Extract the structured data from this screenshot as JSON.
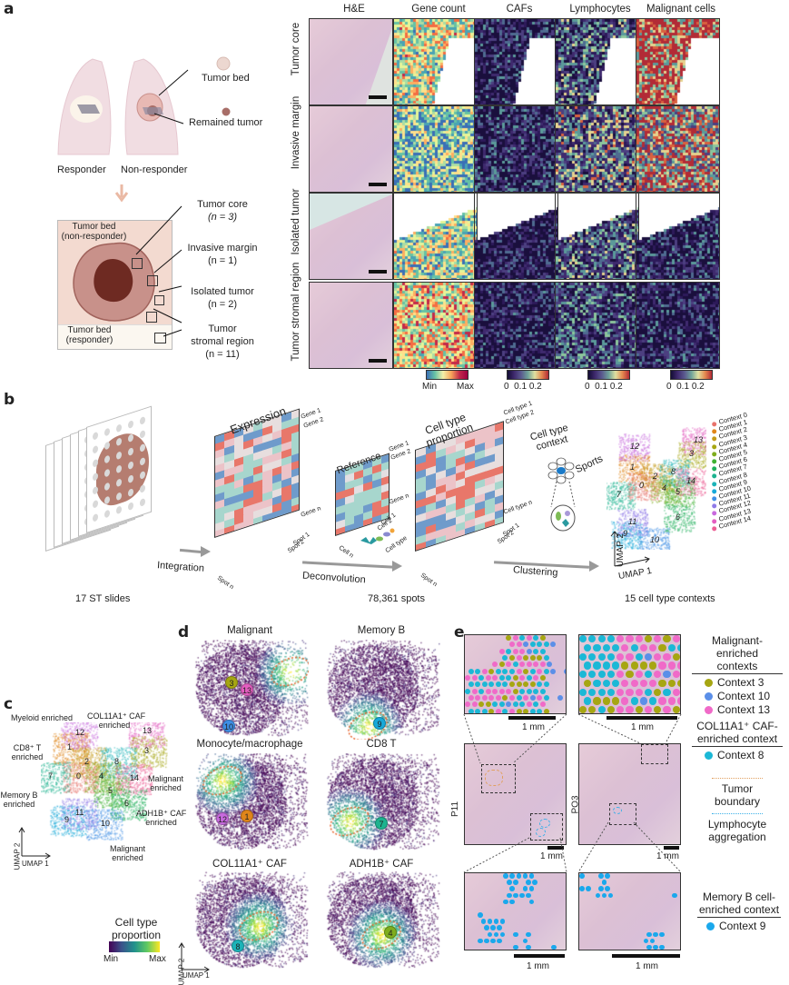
{
  "panel_labels": {
    "a": "a",
    "b": "b",
    "c": "c",
    "d": "d",
    "e": "e"
  },
  "panel_a": {
    "schematic": {
      "lung_labels": [
        "Responder",
        "Non-responder"
      ],
      "callouts": [
        "Tumor bed",
        "Remained tumor"
      ],
      "box_labels": {
        "nonresponder": "Tumor bed\n(non-responder)",
        "responder": "Tumor bed\n(responder)"
      },
      "box_nonresponder_line1": "Tumor bed",
      "box_nonresponder_line2": "(non-responder)",
      "box_responder_line1": "Tumor bed",
      "box_responder_line2": "(responder)",
      "regions": [
        {
          "name": "Tumor core",
          "n": "(n = 3)"
        },
        {
          "name": "Invasive margin",
          "n": "(n = 1)"
        },
        {
          "name": "Isolated tumor",
          "n": "(n = 2)"
        },
        {
          "name": "Tumor\nstromal region",
          "line1": "Tumor",
          "line2": "stromal region",
          "n": "(n = 11)"
        }
      ]
    },
    "grid": {
      "columns": [
        "H&E",
        "Gene count",
        "CAFs",
        "Lymphocytes",
        "Malignant cells"
      ],
      "rows": [
        "Tumor core",
        "Invasive margin",
        "Isolated tumor",
        "Tumor stromal region"
      ],
      "colorbars": [
        {
          "column": "Gene count",
          "ticks": [
            "Min",
            "Max"
          ],
          "palette": "spectral"
        },
        {
          "column": "CAFs",
          "ticks": [
            "0",
            "0.1",
            "0.2"
          ],
          "palette": "magma-like"
        },
        {
          "column": "Lymphocytes",
          "ticks": [
            "0",
            "0.1",
            "0.2"
          ],
          "palette": "magma-like"
        },
        {
          "column": "Malignant cells",
          "ticks": [
            "0",
            "0.1",
            "0.2"
          ],
          "palette": "magma-like"
        }
      ]
    }
  },
  "panel_b": {
    "steps": [
      {
        "caption": "17 ST slides"
      },
      {
        "arrow": "Integration"
      },
      {
        "matrix": "Expression",
        "row_labels": [
          "Gene 1",
          "Gene 2",
          "Gene n"
        ],
        "col_labels": [
          "Spot 1",
          "Spot 2",
          "Spot n"
        ]
      },
      {
        "matrix": "Reference",
        "row_labels": [
          "Gene 1",
          "Gene 2",
          "Gene n"
        ],
        "col_labels": [
          "Cell 1",
          "Cell 2",
          "Cell n"
        ],
        "extra": "Cell type"
      },
      {
        "arrow": "Deconvolution"
      },
      {
        "matrix": "Cell type proportion",
        "row_labels": [
          "Cell type 1",
          "Cell type 2",
          "Cell type n"
        ],
        "col_labels": [
          "Spot 1",
          "Spot 2",
          "Spot n"
        ],
        "caption": "78,361 spots"
      },
      {
        "context_label": "Cell type\ncontext",
        "context_line1": "Cell type",
        "context_line2": "context",
        "spots_label": "Sports"
      },
      {
        "arrow": "Clustering"
      },
      {
        "umap_caption": "15 cell type contexts",
        "axes": [
          "UMAP 1",
          "UMAP 2"
        ]
      }
    ],
    "caption_slides": "17 ST slides",
    "caption_spots": "78,361 spots",
    "caption_contexts": "15 cell type contexts",
    "arrow_integration": "Integration",
    "arrow_deconvolution": "Deconvolution",
    "arrow_clustering": "Clustering",
    "matrix_expression": "Expression",
    "matrix_reference": "Reference",
    "matrix_proportion_line1": "Cell type",
    "matrix_proportion_line2": "proportion",
    "context_line1": "Cell type",
    "context_line2": "context",
    "spots_label": "Sports",
    "umap_x": "UMAP 1",
    "umap_y": "UMAP 2",
    "umap_cluster_numbers": [
      "0",
      "1",
      "2",
      "3",
      "4",
      "5",
      "6",
      "7",
      "8",
      "9",
      "10",
      "11",
      "12",
      "13",
      "14"
    ],
    "legend": [
      {
        "label": "Context 0",
        "color": "#e8736c"
      },
      {
        "label": "Context 1",
        "color": "#e0861a"
      },
      {
        "label": "Context 2",
        "color": "#c49a17"
      },
      {
        "label": "Context 3",
        "color": "#a6a612"
      },
      {
        "label": "Context 4",
        "color": "#7fad1e"
      },
      {
        "label": "Context 5",
        "color": "#3eb131"
      },
      {
        "label": "Context 6",
        "color": "#1eb05a"
      },
      {
        "label": "Context 7",
        "color": "#1db38f"
      },
      {
        "label": "Context 8",
        "color": "#1cb3b8"
      },
      {
        "label": "Context 9",
        "color": "#17a9d9"
      },
      {
        "label": "Context 10",
        "color": "#3f8fe6"
      },
      {
        "label": "Context 11",
        "color": "#8f7ae8"
      },
      {
        "label": "Context 12",
        "color": "#c86ade"
      },
      {
        "label": "Context 13",
        "color": "#e45ec0"
      },
      {
        "label": "Context 14",
        "color": "#ed5f95"
      }
    ]
  },
  "panel_c": {
    "annotations": [
      "Myeloid enriched",
      "COL11A1⁺ CAF enriched",
      "CD8⁺ T enriched",
      "Malignant enriched",
      "Memory B enriched",
      "ADH1B⁺ CAF enriched",
      "Malignant enriched"
    ],
    "ann_myeloid": "Myeloid enriched",
    "ann_col11a1_1": "COL11A1⁺ CAF",
    "ann_col11a1_2": "enriched",
    "ann_cd8_1": "CD8⁺ T",
    "ann_cd8_2": "enriched",
    "ann_malig_top_1": "Malignant",
    "ann_malig_top_2": "enriched",
    "ann_memb_1": "Memory B",
    "ann_memb_2": "enriched",
    "ann_adh1b_1": "ADH1B⁺ CAF",
    "ann_adh1b_2": "enriched",
    "ann_malig_bot_1": "Malignant",
    "ann_malig_bot_2": "enriched",
    "axes": {
      "x": "UMAP 1",
      "y": "UMAP 2"
    },
    "colorbar": {
      "title_line1": "Cell type",
      "title_line2": "proportion",
      "min": "Min",
      "max": "Max"
    }
  },
  "panel_d": {
    "plots": [
      {
        "title": "Malignant",
        "contexts": [
          {
            "id": "3",
            "color": "#a6a612"
          },
          {
            "id": "13",
            "color": "#e45ec0"
          },
          {
            "id": "10",
            "color": "#3f8fe6"
          }
        ]
      },
      {
        "title": "Memory B",
        "contexts": [
          {
            "id": "9",
            "color": "#17a9d9"
          }
        ]
      },
      {
        "title": "Monocyte/macrophage",
        "contexts": [
          {
            "id": "12",
            "color": "#c86ade"
          },
          {
            "id": "1",
            "color": "#e0861a"
          }
        ]
      },
      {
        "title": "CD8 T",
        "contexts": [
          {
            "id": "7",
            "color": "#1db38f"
          }
        ]
      },
      {
        "title": "COL11A1⁺ CAF",
        "contexts": [
          {
            "id": "8",
            "color": "#1cb3b8"
          }
        ]
      },
      {
        "title": "ADH1B⁺ CAF",
        "contexts": [
          {
            "id": "4",
            "color": "#7fad1e"
          }
        ]
      }
    ],
    "axes": {
      "x": "UMAP 1",
      "y": "UMAP 2"
    }
  },
  "panel_e": {
    "samples": [
      "P11",
      "PO3"
    ],
    "scalebar_label": "1 mm",
    "legend_malignant_title_1": "Malignant-enriched",
    "legend_malignant_title_2": "contexts",
    "legend_malignant": [
      {
        "label": "Context 3",
        "color": "#a6a612"
      },
      {
        "label": "Context 10",
        "color": "#5b8fe8"
      },
      {
        "label": "Context 13",
        "color": "#f06ac8"
      }
    ],
    "legend_caf_title_1": "COL11A1⁺ CAF-",
    "legend_caf_title_2": "enriched context",
    "legend_caf": [
      {
        "label": "Context 8",
        "color": "#1bb8d6"
      }
    ],
    "boundary_legend": [
      {
        "label": "Tumor boundary",
        "color": "#e0a060"
      },
      {
        "label_1": "Lymphocyte",
        "label_2": "aggregation",
        "color": "#3db0e8"
      }
    ],
    "legend_memb_title_1": "Memory B cell-",
    "legend_memb_title_2": "enriched context",
    "legend_memb": [
      {
        "label": "Context 9",
        "color": "#1aa8ec"
      }
    ]
  }
}
